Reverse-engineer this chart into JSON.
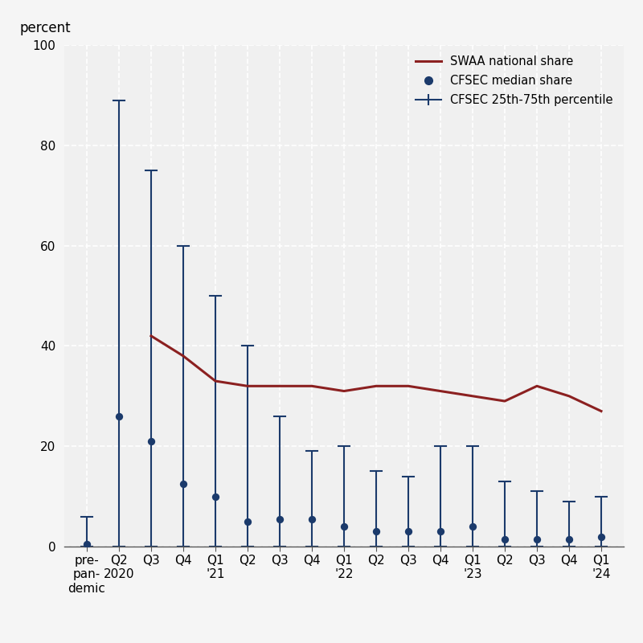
{
  "x_labels": [
    "pre-\npan-\ndemic",
    "Q2\n2020",
    "Q3",
    "Q4",
    "Q1\n'21",
    "Q2",
    "Q3",
    "Q4",
    "Q1\n'22",
    "Q2",
    "Q3",
    "Q4",
    "Q1\n'23",
    "Q2",
    "Q3",
    "Q4",
    "Q1\n'24"
  ],
  "x_positions": [
    0,
    1,
    2,
    3,
    4,
    5,
    6,
    7,
    8,
    9,
    10,
    11,
    12,
    13,
    14,
    15,
    16
  ],
  "cfsec_median": [
    0.5,
    26,
    21,
    12.5,
    10,
    5,
    5.5,
    5.5,
    4,
    3,
    3,
    3,
    4,
    1.5,
    1.5,
    1.5,
    2
  ],
  "cfsec_p25": [
    0,
    0,
    0,
    0,
    0,
    0,
    0,
    0,
    0,
    0,
    0,
    0,
    0,
    0,
    0,
    0,
    0
  ],
  "cfsec_p75": [
    6,
    89,
    75,
    60,
    50,
    40,
    26,
    19,
    20,
    15,
    14,
    20,
    20,
    13,
    11,
    9,
    10
  ],
  "swaa_x": [
    2,
    3,
    4,
    5,
    6,
    7,
    8,
    9,
    10,
    11,
    12,
    13,
    14,
    15,
    16
  ],
  "swaa_y": [
    42,
    38,
    33,
    32,
    32,
    32,
    31,
    32,
    32,
    31,
    30,
    29,
    32,
    30,
    27
  ],
  "navy_color": "#1b3a6b",
  "red_color": "#8b2020",
  "bg_color": "#f5f5f5",
  "plot_bg_color": "#f0f0f0",
  "grid_color": "#ffffff",
  "ylabel": "percent",
  "ylim": [
    0,
    100
  ],
  "yticks": [
    0,
    20,
    40,
    60,
    80,
    100
  ],
  "cap_size": 0.18,
  "tick_fontsize": 11,
  "label_fontsize": 12,
  "legend_labels": [
    "SWAA national share",
    "CFSEC median share",
    "CFSEC 25th-75th percentile"
  ]
}
